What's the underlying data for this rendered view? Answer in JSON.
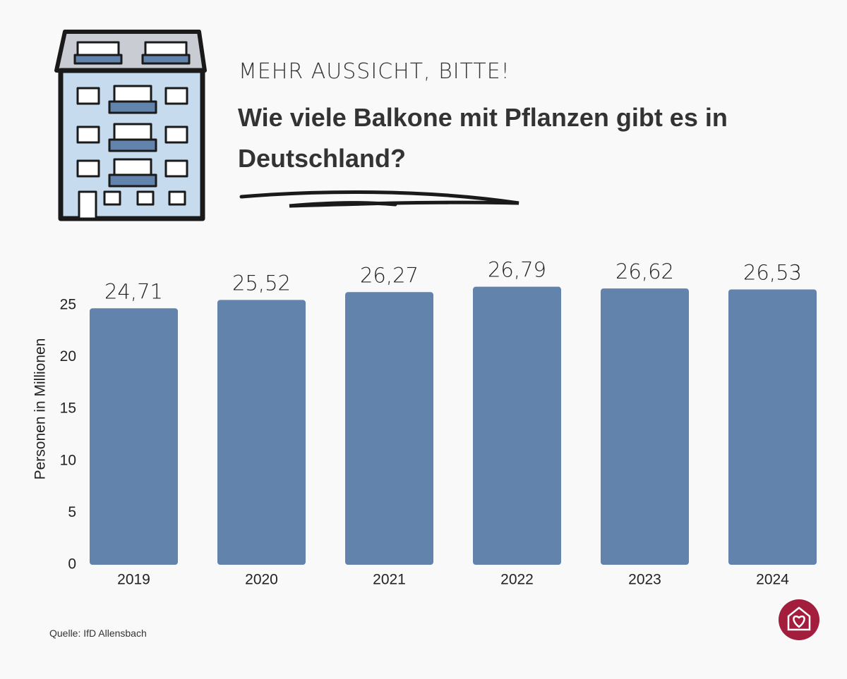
{
  "chart_data": {
    "type": "bar",
    "subtitle": "MEHR AUSSICHT, BITTE!",
    "title": "Wie viele Balkone mit Pflanzen gibt es in Deutschland?",
    "y_label": "Personen in Millionen",
    "source": "Quelle: IfD Allensbach",
    "categories": [
      "2019",
      "2020",
      "2021",
      "2022",
      "2023",
      "2024"
    ],
    "values": [
      24.71,
      25.52,
      26.27,
      26.79,
      26.62,
      26.53
    ],
    "value_labels": [
      "24,71",
      "25,52",
      "26,27",
      "26,79",
      "26,62",
      "26,53"
    ],
    "color": "#6283ab",
    "ylim": [
      0,
      25
    ],
    "yticks": [
      0,
      5,
      10,
      15,
      20,
      25
    ],
    "grid": false
  }
}
